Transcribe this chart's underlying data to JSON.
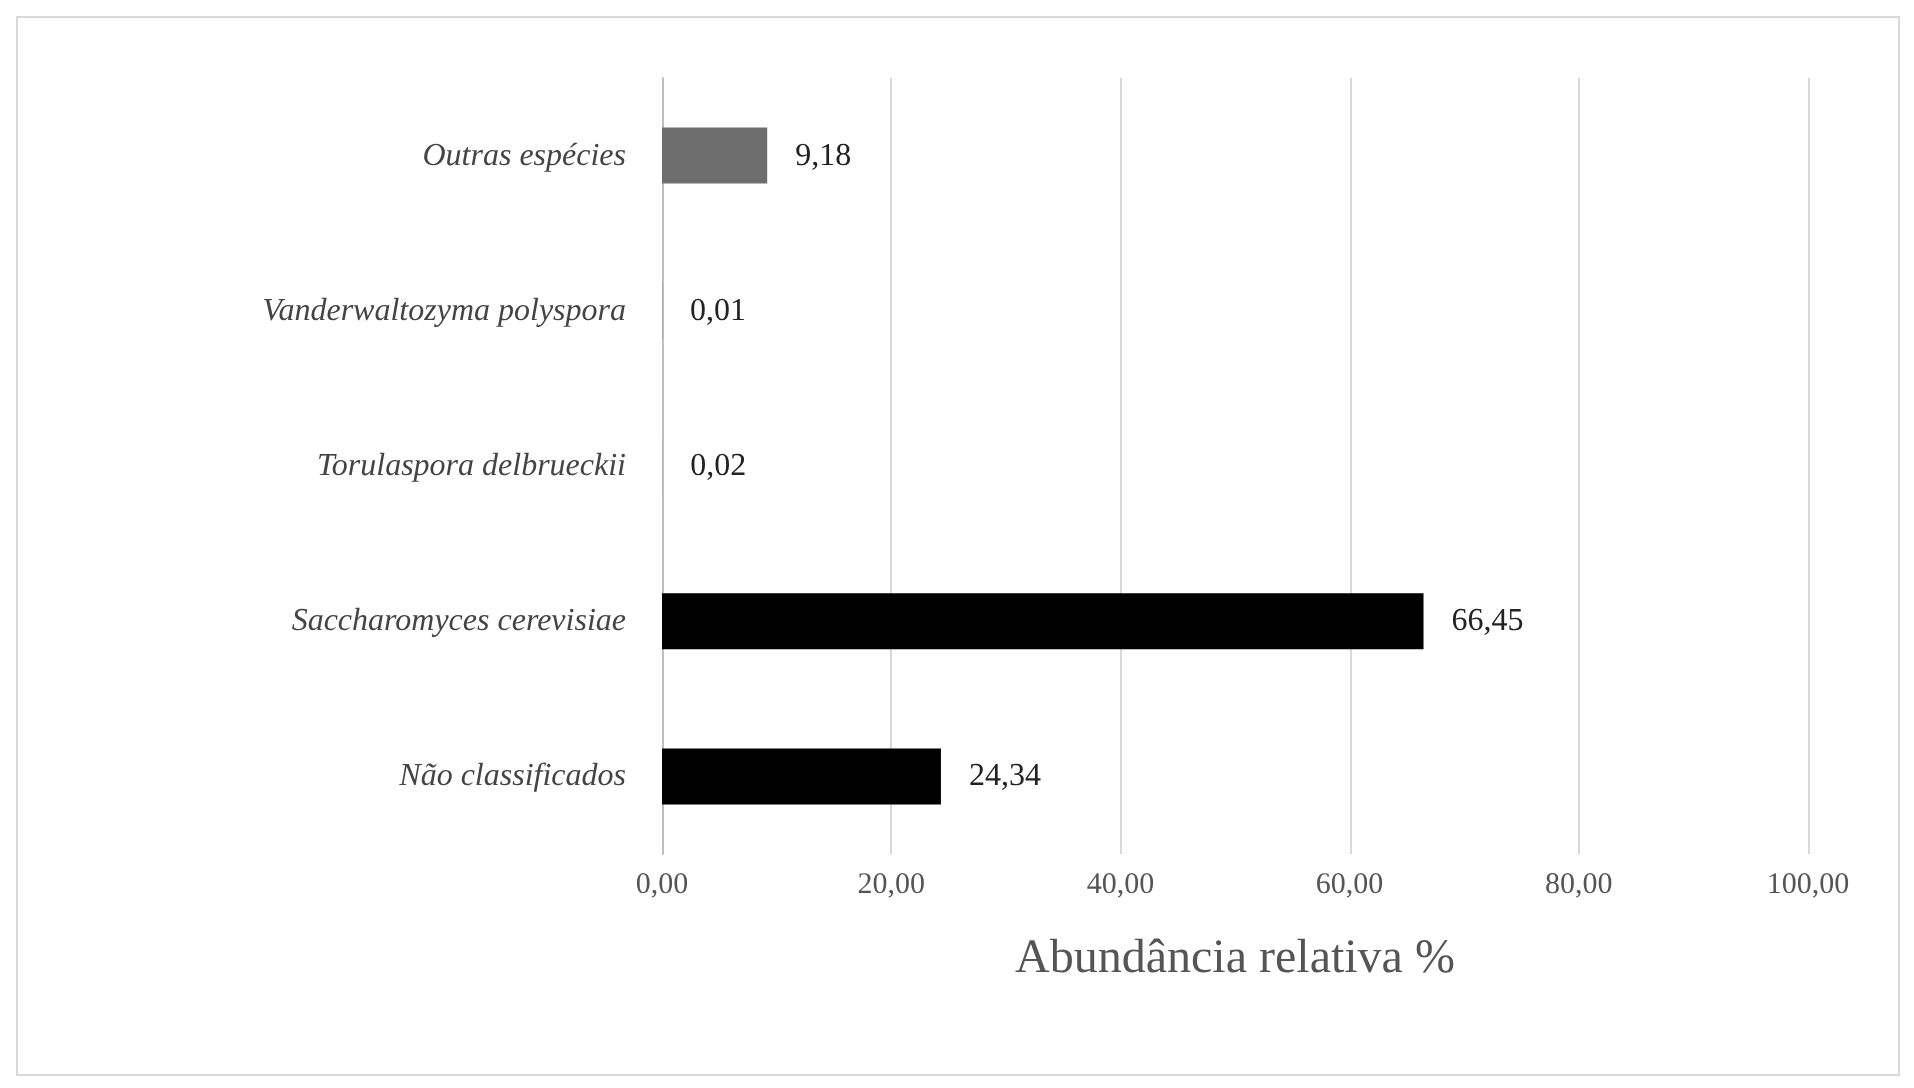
{
  "chart_data": {
    "type": "bar",
    "orientation": "horizontal",
    "xlabel": "Abundância relativa %",
    "categories": [
      "Outras espécies",
      "Vanderwaltozyma polyspora",
      "Torulaspora delbrueckii",
      "Saccharomyces cerevisiae",
      "Não classificados"
    ],
    "values": [
      9.18,
      0.01,
      0.02,
      66.45,
      24.34
    ],
    "colors": [
      "#6e6e6e",
      "#000000",
      "#9a9a9a",
      "#000000",
      "#000000"
    ],
    "value_labels": [
      "9,18",
      "0,01",
      "0,02",
      "66,45",
      "24,34"
    ],
    "xlim": [
      0,
      100
    ],
    "xticks": [
      {
        "value": 0,
        "label": "0,00"
      },
      {
        "value": 20,
        "label": "20,00"
      },
      {
        "value": 40,
        "label": "40,00"
      },
      {
        "value": 60,
        "label": "60,00"
      },
      {
        "value": 80,
        "label": "80,00"
      },
      {
        "value": 100,
        "label": "100,00"
      }
    ],
    "grid": "x"
  }
}
